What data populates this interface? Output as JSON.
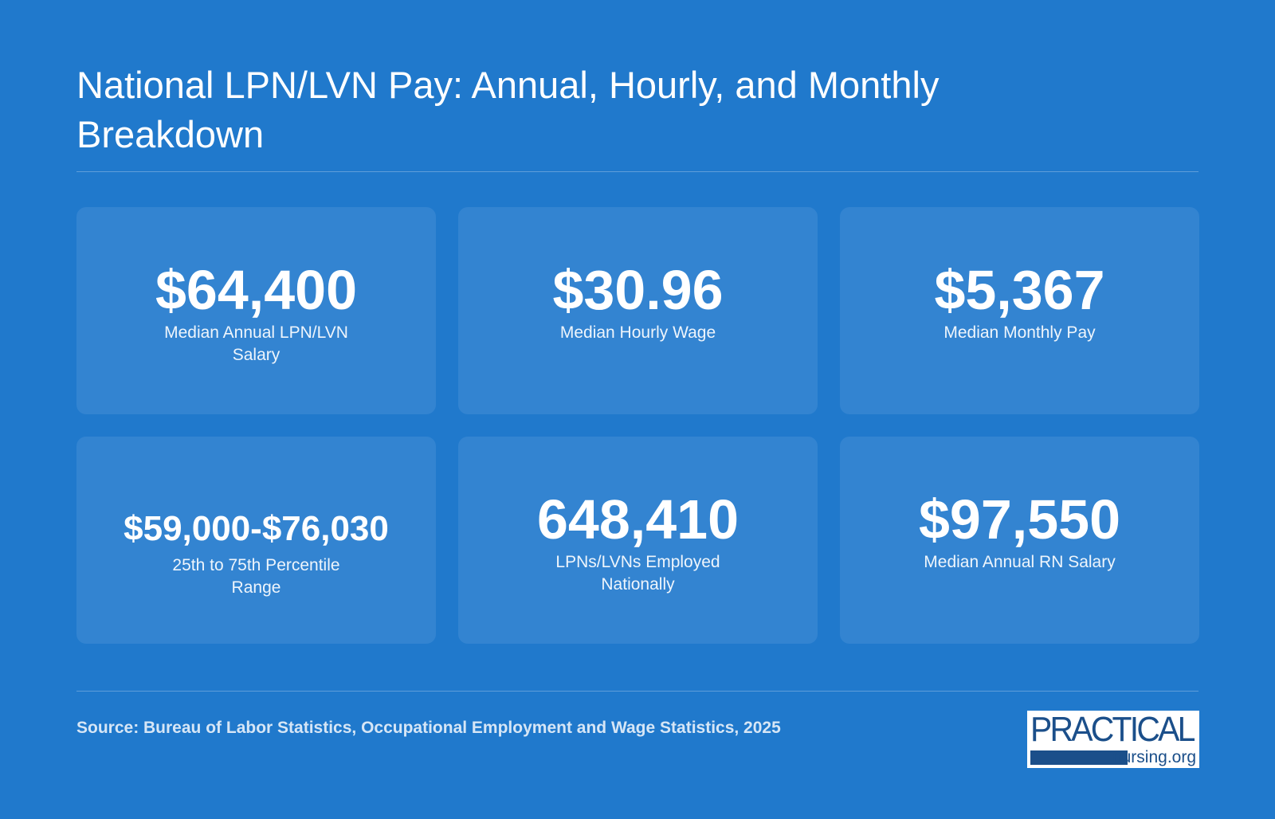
{
  "title": "National LPN/LVN Pay: Annual, Hourly, and Monthly Breakdown",
  "cards": [
    {
      "value": "$64,400",
      "label": "Median Annual LPN/LVN Salary"
    },
    {
      "value": "$30.96",
      "label": "Median Hourly Wage"
    },
    {
      "value": "$5,367",
      "label": "Median Monthly Pay"
    },
    {
      "value": "$59,000-$76,030",
      "label": "25th to 75th Percentile Range"
    },
    {
      "value": "648,410",
      "label": "LPNs/LVNs Employed Nationally"
    },
    {
      "value": "$97,550",
      "label": "Median Annual RN Salary"
    }
  ],
  "source": "Source: Bureau of Labor Statistics, Occupational Employment and Wage Statistics, 2025",
  "logo": {
    "line1": "PRACTICAL",
    "line2": "nursing.org"
  },
  "colors": {
    "background": "#2079cc",
    "card": "#3384d1",
    "text": "#ffffff",
    "source_text": "#d6e6f6",
    "logo_brand": "#1b4f8a"
  }
}
